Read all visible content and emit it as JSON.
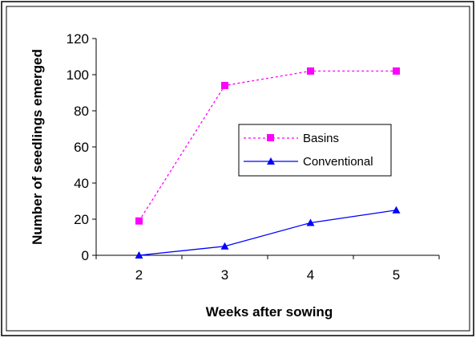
{
  "chart_data": {
    "type": "line",
    "x": [
      2,
      3,
      4,
      5
    ],
    "xlabel": "Weeks after sowing",
    "ylabel": "Number of seedlings emerged",
    "ylim": [
      0,
      120
    ],
    "yticks": [
      0,
      20,
      40,
      60,
      80,
      100,
      120
    ],
    "grid": false,
    "legend_position": "right-center",
    "series": [
      {
        "name": "Basins",
        "values": [
          19,
          94,
          102,
          102
        ],
        "color": "#ff00ff",
        "line_style": "dotted",
        "marker": "square"
      },
      {
        "name": "Conventional",
        "values": [
          0,
          5,
          18,
          25
        ],
        "color": "#0000ff",
        "line_style": "solid",
        "marker": "triangle"
      }
    ]
  }
}
